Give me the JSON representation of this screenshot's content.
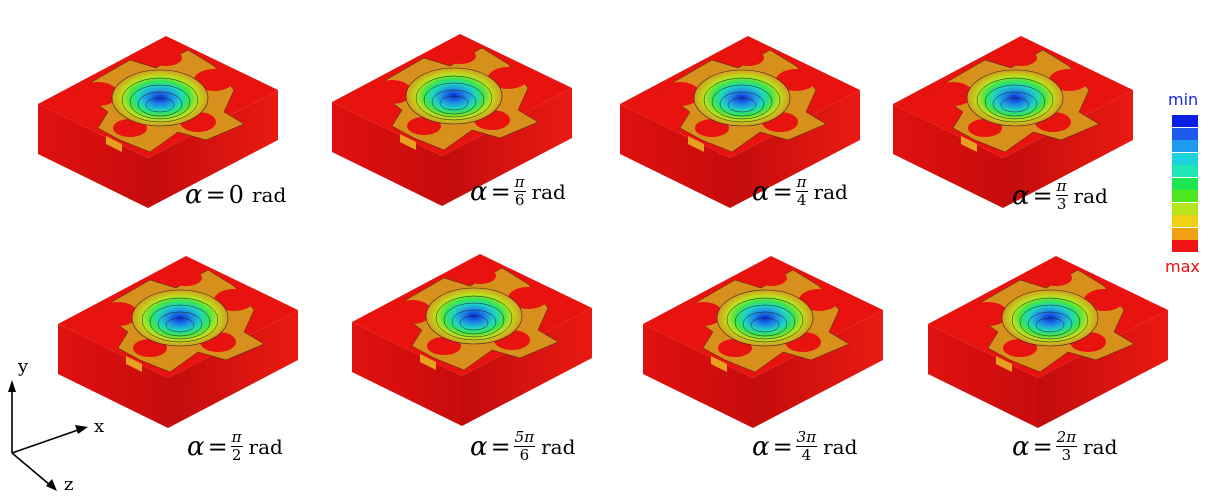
{
  "panels": [
    {
      "numerator": "",
      "denominator": "",
      "value": "0",
      "unit": "rad",
      "alpha": "α"
    },
    {
      "numerator": "π",
      "denominator": "6",
      "value": "",
      "unit": "rad",
      "alpha": "α"
    },
    {
      "numerator": "π",
      "denominator": "4",
      "value": "",
      "unit": "rad",
      "alpha": "α"
    },
    {
      "numerator": "π",
      "denominator": "3",
      "value": "",
      "unit": "rad",
      "alpha": "α"
    },
    {
      "numerator": "π",
      "denominator": "2",
      "value": "",
      "unit": "rad",
      "alpha": "α"
    },
    {
      "numerator": "5π",
      "denominator": "6",
      "value": "",
      "unit": "rad",
      "alpha": "α"
    },
    {
      "numerator": "3π",
      "denominator": "4",
      "value": "",
      "unit": "rad",
      "alpha": "α"
    },
    {
      "numerator": "2π",
      "denominator": "3",
      "value": "",
      "unit": "rad",
      "alpha": "α"
    }
  ],
  "legend": {
    "min_label": "min",
    "max_label": "max",
    "min_color": "#1428e6",
    "max_color": "#e60f0f",
    "colors": [
      "#0a1ee6",
      "#1e5af0",
      "#1e9bf0",
      "#1ed2dc",
      "#1ee6b4",
      "#1ee650",
      "#50e61e",
      "#b4e61e",
      "#f0d214",
      "#f0a014",
      "#f01414"
    ]
  },
  "axes": {
    "y": "y",
    "x": "x",
    "z": "z"
  },
  "colors": {
    "base_red": "#e8130f",
    "rim_orange": "#d7901c"
  }
}
